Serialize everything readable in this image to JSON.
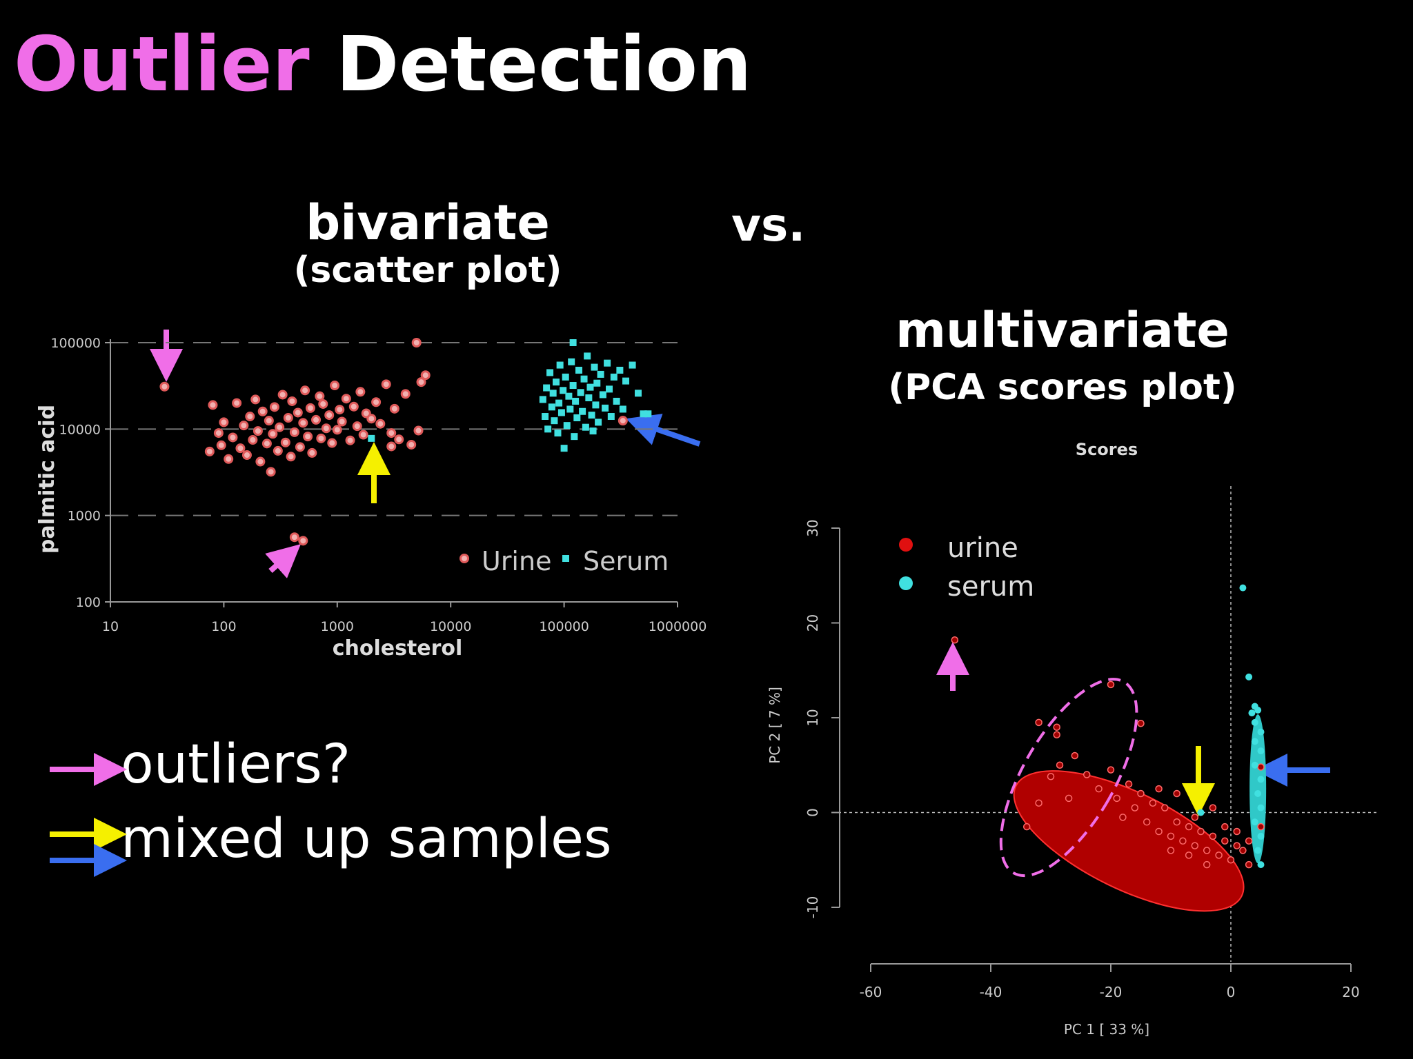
{
  "title": {
    "accent": "Outlier",
    "rest": " Detection"
  },
  "bivariate": {
    "title": "bivariate",
    "subtitle": "(scatter plot)"
  },
  "vs_label": "vs.",
  "multivariate": {
    "title": "multivariate",
    "subtitle": "(PCA scores plot)"
  },
  "legend": {
    "outliers": "outliers?",
    "mixed": "mixed up samples"
  },
  "colors": {
    "pink": "#f06ee8",
    "yellow": "#f5f000",
    "blue": "#3a6ef0",
    "urine": "#e05a5a",
    "serum": "#40e0e0"
  },
  "chart_data": [
    {
      "type": "scatter",
      "title": "",
      "xlabel": "cholesterol",
      "ylabel": "palmitic acid",
      "xscale": "log",
      "yscale": "log",
      "xlim": [
        10,
        1000000
      ],
      "ylim": [
        100,
        100000
      ],
      "xticks": [
        "10",
        "100",
        "1000",
        "10000",
        "100000",
        "1000000"
      ],
      "yticks": [
        "100",
        "1000",
        "10000",
        "100000"
      ],
      "grid": true,
      "legend_position": "bottom-right",
      "series": [
        {
          "name": "Urine",
          "color": "#e05a5a",
          "marker": "circle",
          "points": [
            [
              30,
              31000
            ],
            [
              75,
              5500
            ],
            [
              80,
              19000
            ],
            [
              90,
              9000
            ],
            [
              95,
              6500
            ],
            [
              100,
              12000
            ],
            [
              110,
              4500
            ],
            [
              120,
              8000
            ],
            [
              130,
              20000
            ],
            [
              140,
              6000
            ],
            [
              150,
              11000
            ],
            [
              160,
              5000
            ],
            [
              170,
              14000
            ],
            [
              180,
              7500
            ],
            [
              190,
              22000
            ],
            [
              200,
              9500
            ],
            [
              210,
              4200
            ],
            [
              220,
              16000
            ],
            [
              240,
              6800
            ],
            [
              250,
              12500
            ],
            [
              260,
              3200
            ],
            [
              270,
              8800
            ],
            [
              280,
              18000
            ],
            [
              300,
              5600
            ],
            [
              310,
              10500
            ],
            [
              330,
              25000
            ],
            [
              350,
              7000
            ],
            [
              370,
              13500
            ],
            [
              390,
              4800
            ],
            [
              400,
              21000
            ],
            [
              420,
              9200
            ],
            [
              450,
              15500
            ],
            [
              470,
              6200
            ],
            [
              500,
              11800
            ],
            [
              520,
              28000
            ],
            [
              550,
              8200
            ],
            [
              580,
              17500
            ],
            [
              600,
              5300
            ],
            [
              650,
              12800
            ],
            [
              700,
              24000
            ],
            [
              720,
              7800
            ],
            [
              750,
              19500
            ],
            [
              800,
              10200
            ],
            [
              850,
              14500
            ],
            [
              900,
              6900
            ],
            [
              950,
              32000
            ],
            [
              1000,
              9800
            ],
            [
              1050,
              16800
            ],
            [
              1100,
              12200
            ],
            [
              1200,
              22500
            ],
            [
              1300,
              7400
            ],
            [
              1400,
              18200
            ],
            [
              1500,
              10800
            ],
            [
              1600,
              27000
            ],
            [
              1700,
              8600
            ],
            [
              1800,
              15200
            ],
            [
              2000,
              13200
            ],
            [
              2200,
              20500
            ],
            [
              2400,
              11500
            ],
            [
              2700,
              33000
            ],
            [
              3000,
              6300
            ],
            [
              3200,
              17200
            ],
            [
              3500,
              7600
            ],
            [
              4000,
              25500
            ],
            [
              4500,
              6600
            ],
            [
              5000,
              100000
            ],
            [
              5200,
              9600
            ],
            [
              5500,
              35000
            ],
            [
              6000,
              42000
            ],
            [
              420,
              560
            ],
            [
              500,
              510
            ],
            [
              3000,
              9000
            ],
            [
              330000,
              12500
            ]
          ]
        },
        {
          "name": "Serum",
          "color": "#40e0e0",
          "marker": "square",
          "points": [
            [
              2000,
              7800
            ],
            [
              65000,
              22000
            ],
            [
              68000,
              14000
            ],
            [
              70000,
              30000
            ],
            [
              72000,
              10000
            ],
            [
              75000,
              45000
            ],
            [
              78000,
              18000
            ],
            [
              80000,
              26000
            ],
            [
              82000,
              12500
            ],
            [
              85000,
              35000
            ],
            [
              88000,
              9000
            ],
            [
              90000,
              20000
            ],
            [
              92000,
              55000
            ],
            [
              95000,
              15500
            ],
            [
              98000,
              28000
            ],
            [
              100000,
              6000
            ],
            [
              103000,
              40000
            ],
            [
              106000,
              11000
            ],
            [
              110000,
              24000
            ],
            [
              113000,
              17000
            ],
            [
              116000,
              60000
            ],
            [
              120000,
              32000
            ],
            [
              123000,
              8200
            ],
            [
              126000,
              21000
            ],
            [
              130000,
              13500
            ],
            [
              135000,
              48000
            ],
            [
              140000,
              26500
            ],
            [
              145000,
              16000
            ],
            [
              150000,
              38000
            ],
            [
              155000,
              10500
            ],
            [
              160000,
              70000
            ],
            [
              165000,
              23000
            ],
            [
              170000,
              30500
            ],
            [
              175000,
              14500
            ],
            [
              180000,
              9500
            ],
            [
              185000,
              52000
            ],
            [
              190000,
              19000
            ],
            [
              195000,
              34000
            ],
            [
              200000,
              12000
            ],
            [
              210000,
              43000
            ],
            [
              220000,
              25000
            ],
            [
              230000,
              17500
            ],
            [
              240000,
              58000
            ],
            [
              250000,
              29000
            ],
            [
              260000,
              14000
            ],
            [
              275000,
              40000
            ],
            [
              290000,
              21000
            ],
            [
              310000,
              48000
            ],
            [
              330000,
              17000
            ],
            [
              350000,
              36000
            ],
            [
              400000,
              55000
            ],
            [
              450000,
              26000
            ],
            [
              500000,
              15000
            ],
            [
              550000,
              15000
            ],
            [
              120000,
              100000
            ]
          ]
        }
      ]
    },
    {
      "type": "scatter",
      "title": "Scores",
      "xlabel": "PC 1 [ 33 %]",
      "ylabel": "PC 2 [ 7 %]",
      "xlim": [
        -60,
        20
      ],
      "ylim": [
        -10,
        30
      ],
      "xticks": [
        "-60",
        "-40",
        "-20",
        "0",
        "20"
      ],
      "yticks": [
        "-10",
        "0",
        "10",
        "20",
        "30"
      ],
      "grid": false,
      "legend_position": "top-left",
      "series": [
        {
          "name": "urine",
          "color": "#e01010",
          "points": [
            [
              -46,
              18.2
            ],
            [
              -32,
              9.5
            ],
            [
              -29,
              9
            ],
            [
              -29,
              8.2
            ],
            [
              -20,
              13.5
            ],
            [
              -15,
              9.4
            ],
            [
              -30,
              3.8
            ],
            [
              -28.5,
              5
            ],
            [
              -26,
              6
            ],
            [
              -32,
              1
            ],
            [
              -34,
              -1.5
            ],
            [
              -27,
              1.5
            ],
            [
              -24,
              4
            ],
            [
              -22,
              2.5
            ],
            [
              -20,
              4.5
            ],
            [
              -19,
              1.5
            ],
            [
              -18,
              -0.5
            ],
            [
              -17,
              3
            ],
            [
              -16,
              0.5
            ],
            [
              -15,
              2
            ],
            [
              -14,
              -1
            ],
            [
              -13,
              1
            ],
            [
              -12,
              -2
            ],
            [
              -11,
              0.5
            ],
            [
              -10,
              -2.5
            ],
            [
              -9,
              -1
            ],
            [
              -8,
              -3
            ],
            [
              -7,
              -1.5
            ],
            [
              -6,
              -3.5
            ],
            [
              -5,
              -2
            ],
            [
              -4,
              -4
            ],
            [
              -3,
              -2.5
            ],
            [
              -2,
              -4.5
            ],
            [
              -1,
              -3
            ],
            [
              0,
              -5
            ],
            [
              1,
              -3.5
            ],
            [
              2,
              -4
            ],
            [
              3,
              -5.5
            ],
            [
              -9,
              2
            ],
            [
              -12,
              2.5
            ],
            [
              -6,
              -0.5
            ],
            [
              -3,
              0.5
            ],
            [
              -1,
              -1.5
            ],
            [
              1,
              -2
            ],
            [
              3,
              -3
            ],
            [
              5,
              4.8
            ],
            [
              5,
              -1.5
            ],
            [
              -10,
              -4
            ],
            [
              -7,
              -4.5
            ],
            [
              -4,
              -5.5
            ]
          ]
        },
        {
          "name": "serum",
          "color": "#40e0e0",
          "points": [
            [
              2,
              23.7
            ],
            [
              3,
              14.3
            ],
            [
              4,
              11.2
            ],
            [
              3.5,
              10.5
            ],
            [
              4.5,
              10.8
            ],
            [
              4,
              9.5
            ],
            [
              5,
              8.5
            ],
            [
              4,
              7.5
            ],
            [
              5,
              6.5
            ],
            [
              4,
              5
            ],
            [
              5,
              3.5
            ],
            [
              4.5,
              2
            ],
            [
              5,
              0.5
            ],
            [
              4,
              -1
            ],
            [
              5,
              -2.5
            ],
            [
              4.5,
              -4
            ],
            [
              5,
              -5.5
            ],
            [
              -5,
              0
            ]
          ]
        }
      ],
      "ellipses": [
        {
          "label": "urine-confidence",
          "center": [
            -17,
            -3
          ],
          "radii": [
            32,
            8
          ],
          "angle": -26
        },
        {
          "label": "outlier-group",
          "center": [
            -27,
            3.7
          ],
          "radii": [
            8.5,
            9.5
          ],
          "angle": -30
        }
      ]
    }
  ]
}
